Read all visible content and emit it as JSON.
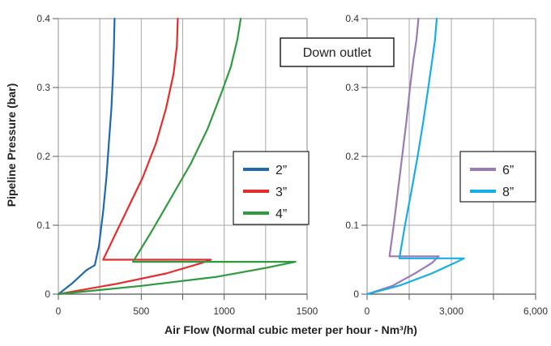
{
  "chart_data": [
    {
      "type": "line",
      "ylabel": "Pipeline Pressure (bar)",
      "xlim": [
        0,
        1500
      ],
      "ylim": [
        0,
        0.4
      ],
      "x_ticks": [
        0,
        500,
        1000,
        1500
      ],
      "x_tick_labels": [
        "0",
        "500",
        "1000",
        "1500"
      ],
      "y_ticks": [
        0,
        0.1,
        0.2,
        0.3,
        0.4
      ],
      "y_tick_labels": [
        "0",
        "0.1",
        "0.2",
        "0.3",
        "0.4"
      ],
      "x_grid_minor": [
        250,
        750,
        1250
      ],
      "legend_position": "center-right",
      "series": [
        {
          "name": "2”",
          "color": "#1f6aad",
          "x": [
            0,
            80,
            170,
            220,
            245,
            270,
            290,
            305,
            320,
            330,
            335,
            339
          ],
          "y": [
            0,
            0.015,
            0.035,
            0.042,
            0.07,
            0.12,
            0.17,
            0.22,
            0.27,
            0.32,
            0.36,
            0.4
          ]
        },
        {
          "name": "3”",
          "color": "#e52d2d",
          "x": [
            0,
            350,
            650,
            860,
            920,
            270,
            350,
            430,
            510,
            590,
            650,
            695,
            715,
            720
          ],
          "y": [
            0,
            0.015,
            0.03,
            0.045,
            0.05,
            0.05,
            0.09,
            0.13,
            0.17,
            0.22,
            0.27,
            0.32,
            0.36,
            0.4
          ]
        },
        {
          "name": "4”",
          "color": "#2f9a3e",
          "x": [
            0,
            500,
            950,
            1250,
            1430,
            450,
            560,
            680,
            800,
            900,
            980,
            1040,
            1080,
            1100
          ],
          "y": [
            0,
            0.012,
            0.025,
            0.038,
            0.047,
            0.047,
            0.09,
            0.14,
            0.19,
            0.24,
            0.29,
            0.33,
            0.37,
            0.4
          ]
        }
      ]
    },
    {
      "type": "line",
      "xlim": [
        0,
        6000
      ],
      "ylim": [
        0,
        0.4
      ],
      "x_ticks": [
        0,
        3000,
        6000
      ],
      "x_tick_labels": [
        "0",
        "3,000",
        "6,000"
      ],
      "y_ticks": [
        0,
        0.1,
        0.2,
        0.3,
        0.4
      ],
      "y_tick_labels": [
        "0",
        "0.1",
        "0.2",
        "0.3",
        "0.4"
      ],
      "x_grid_minor": [
        1500,
        4500
      ],
      "legend_position": "center-right",
      "series": [
        {
          "name": "6”",
          "color": "#9a7bb5",
          "x": [
            0,
            900,
            1700,
            2300,
            2550,
            800,
            950,
            1100,
            1250,
            1400,
            1530,
            1650,
            1760,
            1830
          ],
          "y": [
            0,
            0.012,
            0.03,
            0.045,
            0.055,
            0.055,
            0.1,
            0.15,
            0.2,
            0.25,
            0.3,
            0.34,
            0.37,
            0.4
          ]
        },
        {
          "name": "8”",
          "color": "#18aee5",
          "x": [
            0,
            1200,
            2300,
            3100,
            3450,
            1150,
            1350,
            1580,
            1800,
            2000,
            2180,
            2320,
            2420,
            2480
          ],
          "y": [
            0,
            0.013,
            0.03,
            0.045,
            0.052,
            0.052,
            0.1,
            0.15,
            0.2,
            0.25,
            0.3,
            0.34,
            0.37,
            0.4
          ]
        }
      ]
    }
  ],
  "xlabel": "Air Flow (Normal cubic meter per hour - Nm³/h)",
  "annotation": "Down outlet",
  "grid_color": "#a8a8a8",
  "frame_color": "#8c8c8c"
}
